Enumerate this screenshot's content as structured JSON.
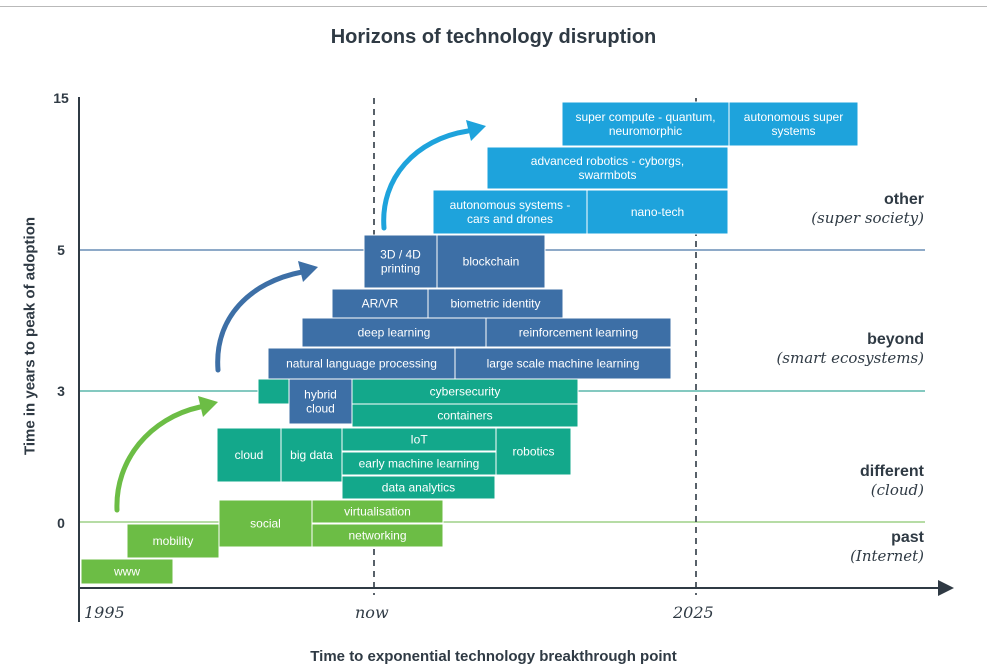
{
  "title": "Horizons of technology disruption",
  "xlabel": "Time to exponential technology breakthrough point",
  "ylabel": "Time in years to peak of adoption",
  "y_ticks": [
    "15",
    "5",
    "3",
    "0"
  ],
  "x_ticks": [
    "1995",
    "now",
    "2025"
  ],
  "zones": [
    {
      "name": "other",
      "sub": "(super society)"
    },
    {
      "name": "beyond",
      "sub": "(smart ecosystems)"
    },
    {
      "name": "different",
      "sub": "(cloud)"
    },
    {
      "name": "past",
      "sub": "(Internet)"
    }
  ],
  "colors": {
    "past": "#6cbd45",
    "different": "#13a88b",
    "beyond": "#3d6fa6",
    "other": "#1ea3dc",
    "axis": "#2f3a44",
    "zone_line_green": "#8bc86f",
    "zone_line_teal": "#3aa99b",
    "zone_line_blue": "#4a78a8"
  },
  "icons": {
    "arrow": "curved-arrow-icon"
  },
  "blocks": [
    {
      "label": "www",
      "zone": "past"
    },
    {
      "label": "mobility",
      "zone": "past"
    },
    {
      "label": "social",
      "zone": "past"
    },
    {
      "label": "virtualisation",
      "zone": "past"
    },
    {
      "label": "networking",
      "zone": "past"
    },
    {
      "label": "cloud",
      "zone": "different"
    },
    {
      "label": "big data",
      "zone": "different"
    },
    {
      "label": "IoT",
      "zone": "different"
    },
    {
      "label": "early machine learning",
      "zone": "different"
    },
    {
      "label": "robotics",
      "zone": "different"
    },
    {
      "label": "data analytics",
      "zone": "different"
    },
    {
      "label": "",
      "zone": "different"
    },
    {
      "label": "hybrid cloud",
      "zone": "beyond"
    },
    {
      "label": "cybersecurity",
      "zone": "different"
    },
    {
      "label": "containers",
      "zone": "different"
    },
    {
      "label": "natural language processing",
      "zone": "beyond"
    },
    {
      "label": "large scale machine learning",
      "zone": "beyond"
    },
    {
      "label": "deep learning",
      "zone": "beyond"
    },
    {
      "label": "reinforcement learning",
      "zone": "beyond"
    },
    {
      "label": "AR/VR",
      "zone": "beyond"
    },
    {
      "label": "biometric identity",
      "zone": "beyond"
    },
    {
      "label": "3D / 4D printing",
      "zone": "beyond"
    },
    {
      "label": "blockchain",
      "zone": "beyond"
    },
    {
      "label": "autonomous systems - cars and drones",
      "zone": "other"
    },
    {
      "label": "nano-tech",
      "zone": "other"
    },
    {
      "label": "advanced robotics - cyborgs, swarmbots",
      "zone": "other"
    },
    {
      "label": "super compute - quantum, neuromorphic",
      "zone": "other"
    },
    {
      "label": "autonomous super systems",
      "zone": "other"
    }
  ]
}
